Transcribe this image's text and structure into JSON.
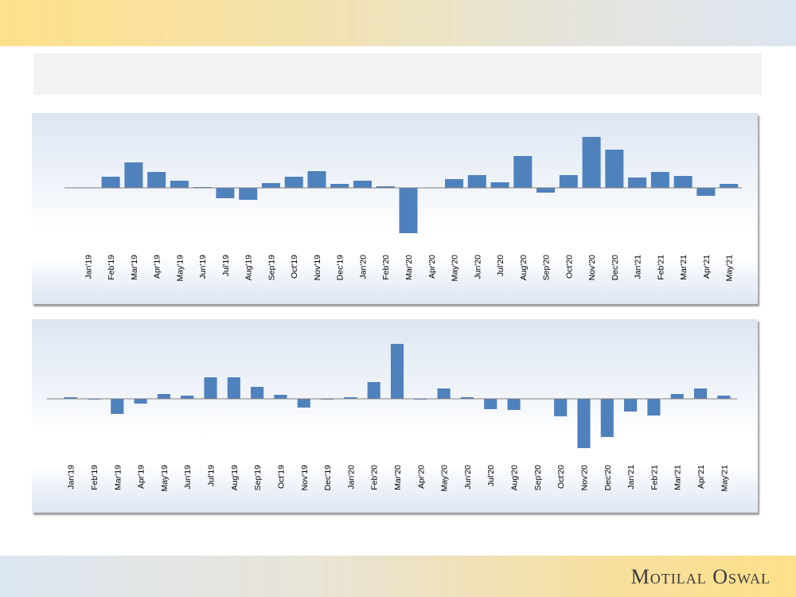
{
  "brand": {
    "name": "Motilal Oswal"
  },
  "colors": {
    "bar": "#4f81bd",
    "axis": "#808080"
  },
  "chart_data": [
    {
      "type": "bar",
      "title": "",
      "xlabel": "",
      "ylabel": "",
      "categories": [
        "Jan'19",
        "Feb'19",
        "Mar'19",
        "Apr'19",
        "May'19",
        "Jun'19",
        "Jul'19",
        "Aug'19",
        "Sep'19",
        "Oct'19",
        "Nov'19",
        "Dec'19",
        "Jan'20",
        "Feb'20",
        "Mar'20",
        "Apr'20",
        "May'20",
        "Jun'20",
        "Jul'20",
        "Aug'20",
        "Sep'20",
        "Oct'20",
        "Nov'20",
        "Dec'20",
        "Jan'21",
        "Feb'21",
        "Mar'21",
        "Apr'21",
        "May'21"
      ],
      "values": [
        0,
        14,
        32,
        20,
        9,
        1,
        -13,
        -15,
        6,
        14,
        21,
        5,
        9,
        2,
        -57,
        0,
        11,
        16,
        7,
        40,
        -6,
        16,
        64,
        48,
        13,
        20,
        15,
        -10,
        5
      ],
      "ylim": [
        -70,
        70
      ],
      "grid": false,
      "note": "relative units, no axis scale shown"
    },
    {
      "type": "bar",
      "title": "",
      "xlabel": "",
      "ylabel": "",
      "categories": [
        "Jan'19",
        "Feb'19",
        "Mar'19",
        "Apr'19",
        "May'19",
        "Jun'19",
        "Jul'19",
        "Aug'19",
        "Sep'19",
        "Oct'19",
        "Nov'19",
        "Dec'19",
        "Jan'20",
        "Feb'20",
        "Mar'20",
        "Apr'20",
        "May'20",
        "Jun'20",
        "Jul'20",
        "Aug'20",
        "Sep'20",
        "Oct'20",
        "Nov'20",
        "Dec'20",
        "Jan'21",
        "Feb'21",
        "Mar'21",
        "Apr'21",
        "May'21"
      ],
      "values": [
        2,
        -1,
        -19,
        -6,
        6,
        4,
        27,
        27,
        15,
        5,
        -11,
        -1,
        2,
        21,
        69,
        -1,
        13,
        2,
        -13,
        -14,
        0,
        -22,
        -62,
        -48,
        -16,
        -21,
        6,
        13,
        4
      ],
      "ylim": [
        -70,
        70
      ],
      "grid": false,
      "note": "relative units, no axis scale shown"
    }
  ]
}
